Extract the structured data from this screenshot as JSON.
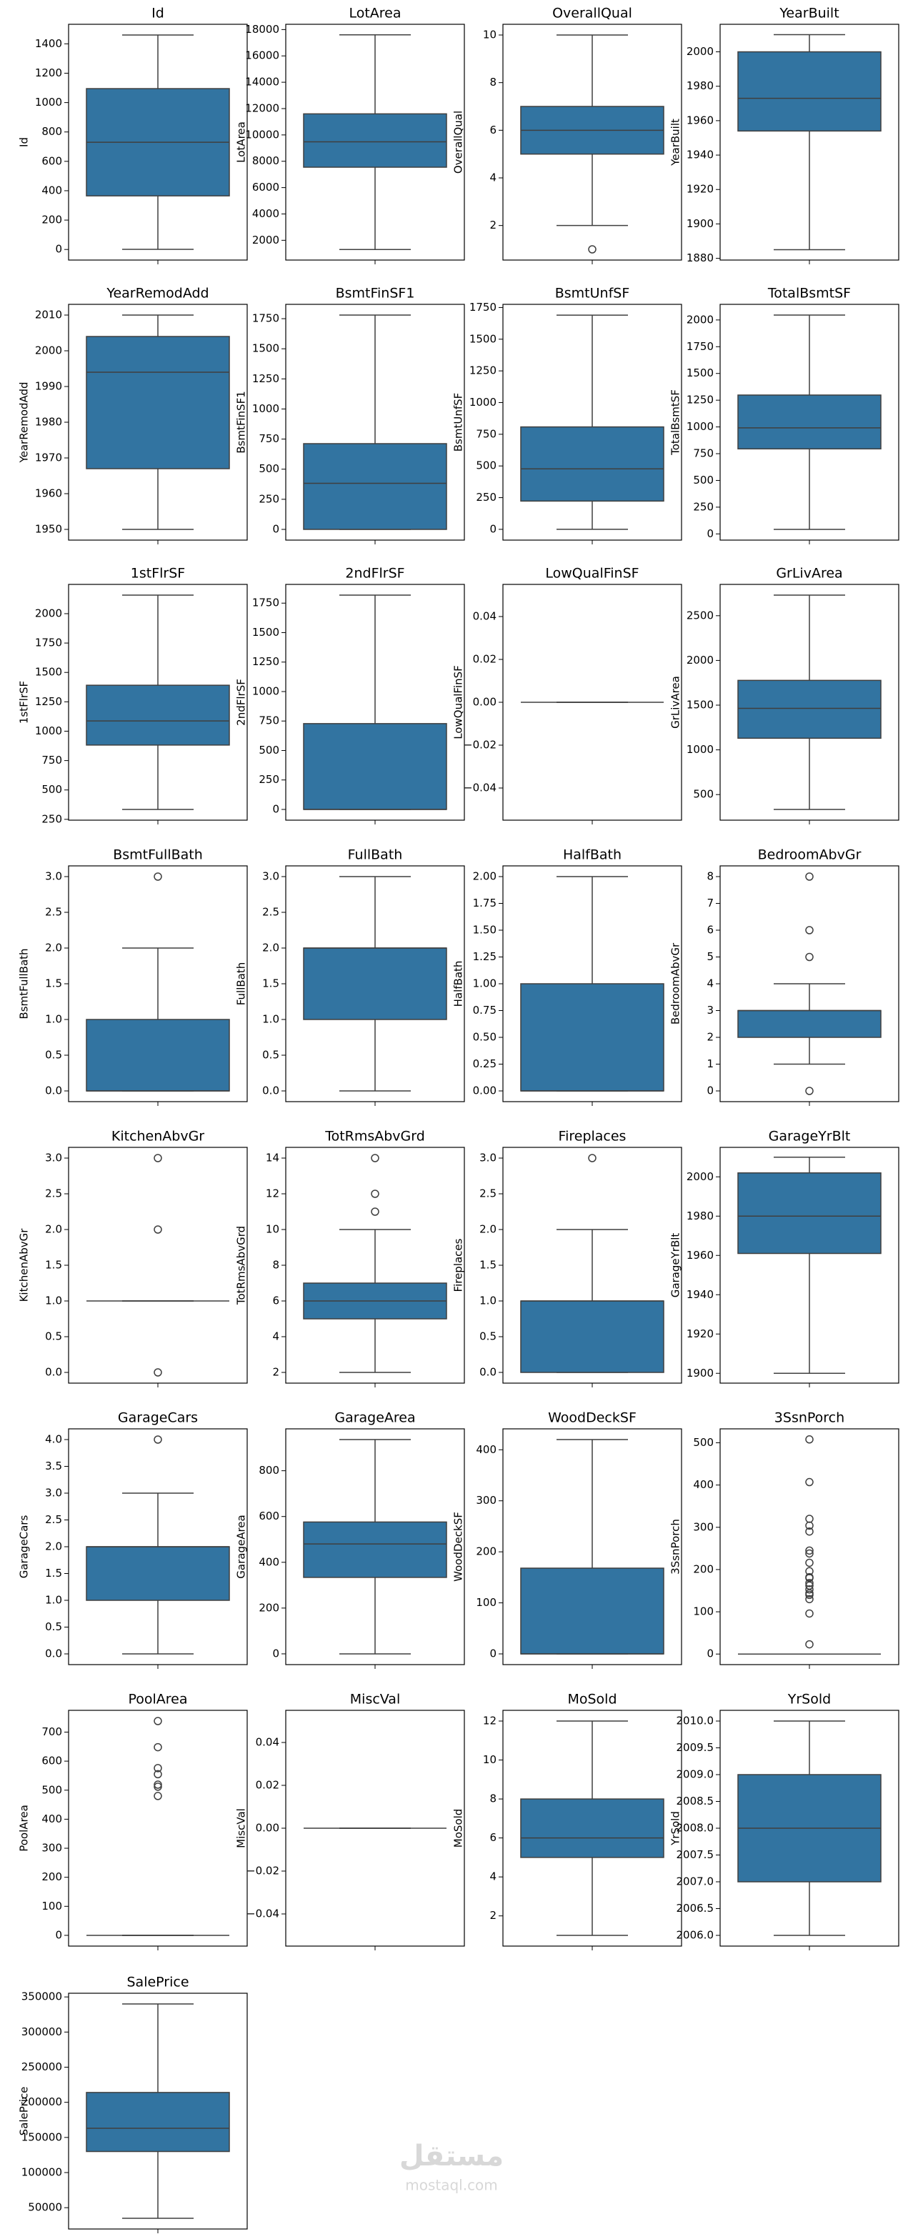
{
  "chart_data": [
    {
      "type": "box",
      "title": "Id",
      "ylabel": "Id",
      "ylim": [
        -72,
        1533
      ],
      "yticks": [
        0,
        200,
        400,
        600,
        800,
        1000,
        1200,
        1400
      ],
      "color": "#3274a1",
      "whislo": 1,
      "q1": 365,
      "med": 730,
      "q3": 1095,
      "whishi": 1460,
      "fliers": []
    },
    {
      "type": "box",
      "title": "LotArea",
      "ylabel": "LotArea",
      "ylim": [
        500,
        18400
      ],
      "yticks": [
        2000,
        4000,
        6000,
        8000,
        10000,
        12000,
        14000,
        16000,
        18000
      ],
      "color": "#3274a1",
      "whislo": 1300,
      "q1": 7550,
      "med": 9480,
      "q3": 11600,
      "whishi": 17600,
      "fliers": []
    },
    {
      "type": "box",
      "title": "OverallQual",
      "ylabel": "OverallQual",
      "ylim": [
        0.55,
        10.45
      ],
      "yticks": [
        2,
        4,
        6,
        8,
        10
      ],
      "color": "#3274a1",
      "whislo": 2,
      "q1": 5,
      "med": 6,
      "q3": 7,
      "whishi": 10,
      "fliers": [
        1
      ]
    },
    {
      "type": "box",
      "title": "YearBuilt",
      "ylabel": "YearBuilt",
      "ylim": [
        1879,
        2016
      ],
      "yticks": [
        1880,
        1900,
        1920,
        1940,
        1960,
        1980,
        2000
      ],
      "color": "#3274a1",
      "whislo": 1885,
      "q1": 1954,
      "med": 1973,
      "q3": 2000,
      "whishi": 2010,
      "fliers": []
    },
    {
      "type": "box",
      "title": "YearRemodAdd",
      "ylabel": "YearRemodAdd",
      "ylim": [
        1947,
        2013
      ],
      "yticks": [
        1950,
        1960,
        1970,
        1980,
        1990,
        2000,
        2010
      ],
      "color": "#3274a1",
      "whislo": 1950,
      "q1": 1967,
      "med": 1994,
      "q3": 2004,
      "whishi": 2010,
      "fliers": []
    },
    {
      "type": "box",
      "title": "BsmtFinSF1",
      "ylabel": "BsmtFinSF1",
      "ylim": [
        -89,
        1869
      ],
      "yticks": [
        0,
        250,
        500,
        750,
        1000,
        1250,
        1500,
        1750
      ],
      "color": "#3274a1",
      "whislo": 0,
      "q1": 0,
      "med": 383,
      "q3": 712,
      "whishi": 1780,
      "fliers": []
    },
    {
      "type": "box",
      "title": "BsmtUnfSF",
      "ylabel": "BsmtUnfSF",
      "ylim": [
        -85,
        1775
      ],
      "yticks": [
        0,
        250,
        500,
        750,
        1000,
        1250,
        1500,
        1750
      ],
      "color": "#3274a1",
      "whislo": 0,
      "q1": 223,
      "med": 477,
      "q3": 808,
      "whishi": 1690,
      "fliers": []
    },
    {
      "type": "box",
      "title": "TotalBsmtSF",
      "ylabel": "TotalBsmtSF",
      "ylim": [
        -58,
        2146
      ],
      "yticks": [
        0,
        250,
        500,
        750,
        1000,
        1250,
        1500,
        1750,
        2000
      ],
      "color": "#3274a1",
      "whislo": 42,
      "q1": 795,
      "med": 991,
      "q3": 1298,
      "whishi": 2046,
      "fliers": []
    },
    {
      "type": "box",
      "title": "1stFlrSF",
      "ylabel": "1stFlrSF",
      "ylim": [
        243,
        2249
      ],
      "yticks": [
        250,
        500,
        750,
        1000,
        1250,
        1500,
        1750,
        2000
      ],
      "color": "#3274a1",
      "whislo": 334,
      "q1": 882,
      "med": 1087,
      "q3": 1391,
      "whishi": 2158,
      "fliers": []
    },
    {
      "type": "box",
      "title": "2ndFlrSF",
      "ylabel": "2ndFlrSF",
      "ylim": [
        -91,
        1909
      ],
      "yticks": [
        0,
        250,
        500,
        750,
        1000,
        1250,
        1500,
        1750
      ],
      "color": "#3274a1",
      "whislo": 0,
      "q1": 0,
      "med": 0,
      "q3": 728,
      "whishi": 1818,
      "fliers": []
    },
    {
      "type": "box",
      "title": "LowQualFinSF",
      "ylabel": "LowQualFinSF",
      "ylim": [
        -0.055,
        0.055
      ],
      "yticks": [
        {
          "value": -0.04,
          "label": "−0.04"
        },
        {
          "value": -0.02,
          "label": "−0.02"
        },
        {
          "value": 0,
          "label": "0.00"
        },
        0.02,
        0.04
      ],
      "color": "#3274a1",
      "whislo": 0,
      "q1": 0,
      "med": 0,
      "q3": 0,
      "whishi": 0,
      "fliers": []
    },
    {
      "type": "box",
      "title": "GrLivArea",
      "ylabel": "GrLivArea",
      "ylim": [
        214,
        2850
      ],
      "yticks": [
        500,
        1000,
        1500,
        2000,
        2500
      ],
      "color": "#3274a1",
      "whislo": 334,
      "q1": 1130,
      "med": 1464,
      "q3": 1777,
      "whishi": 2730,
      "fliers": []
    },
    {
      "type": "box",
      "title": "BsmtFullBath",
      "ylabel": "BsmtFullBath",
      "ylim": [
        -0.15,
        3.15
      ],
      "yticks": [
        {
          "value": 0,
          "label": "0.0"
        },
        0.5,
        {
          "value": 1,
          "label": "1.0"
        },
        1.5,
        {
          "value": 2,
          "label": "2.0"
        },
        2.5,
        {
          "value": 3,
          "label": "3.0"
        }
      ],
      "color": "#3274a1",
      "whislo": 0,
      "q1": 0,
      "med": 0,
      "q3": 1,
      "whishi": 2,
      "fliers": [
        3
      ]
    },
    {
      "type": "box",
      "title": "FullBath",
      "ylabel": "FullBath",
      "ylim": [
        -0.15,
        3.15
      ],
      "yticks": [
        {
          "value": 0,
          "label": "0.0"
        },
        0.5,
        {
          "value": 1,
          "label": "1.0"
        },
        1.5,
        {
          "value": 2,
          "label": "2.0"
        },
        2.5,
        {
          "value": 3,
          "label": "3.0"
        }
      ],
      "color": "#3274a1",
      "whislo": 0,
      "q1": 1,
      "med": 2,
      "q3": 2,
      "whishi": 3,
      "fliers": []
    },
    {
      "type": "box",
      "title": "HalfBath",
      "ylabel": "HalfBath",
      "ylim": [
        -0.1,
        2.1
      ],
      "yticks": [
        {
          "value": 0,
          "label": "0.00"
        },
        0.25,
        {
          "value": 0.5,
          "label": "0.50"
        },
        0.75,
        {
          "value": 1,
          "label": "1.00"
        },
        1.25,
        {
          "value": 1.5,
          "label": "1.50"
        },
        1.75,
        {
          "value": 2,
          "label": "2.00"
        }
      ],
      "color": "#3274a1",
      "whislo": 0,
      "q1": 0,
      "med": 0,
      "q3": 1,
      "whishi": 2,
      "fliers": []
    },
    {
      "type": "box",
      "title": "BedroomAbvGr",
      "ylabel": "BedroomAbvGr",
      "ylim": [
        -0.4,
        8.4
      ],
      "yticks": [
        0,
        1,
        2,
        3,
        4,
        5,
        6,
        7,
        8
      ],
      "color": "#3274a1",
      "whislo": 1,
      "q1": 2,
      "med": 3,
      "q3": 3,
      "whishi": 4,
      "fliers": [
        0,
        5,
        6,
        8
      ]
    },
    {
      "type": "box",
      "title": "KitchenAbvGr",
      "ylabel": "KitchenAbvGr",
      "ylim": [
        -0.15,
        3.15
      ],
      "yticks": [
        {
          "value": 0,
          "label": "0.0"
        },
        0.5,
        {
          "value": 1,
          "label": "1.0"
        },
        1.5,
        {
          "value": 2,
          "label": "2.0"
        },
        2.5,
        {
          "value": 3,
          "label": "3.0"
        }
      ],
      "color": "#3274a1",
      "whislo": 1,
      "q1": 1,
      "med": 1,
      "q3": 1,
      "whishi": 1,
      "fliers": [
        0,
        2,
        3
      ]
    },
    {
      "type": "box",
      "title": "TotRmsAbvGrd",
      "ylabel": "TotRmsAbvGrd",
      "ylim": [
        1.4,
        14.6
      ],
      "yticks": [
        2,
        4,
        6,
        8,
        10,
        12,
        14
      ],
      "color": "#3274a1",
      "whislo": 2,
      "q1": 5,
      "med": 6,
      "q3": 7,
      "whishi": 10,
      "fliers": [
        11,
        12,
        14
      ]
    },
    {
      "type": "box",
      "title": "Fireplaces",
      "ylabel": "Fireplaces",
      "ylim": [
        -0.15,
        3.15
      ],
      "yticks": [
        {
          "value": 0,
          "label": "0.0"
        },
        0.5,
        {
          "value": 1,
          "label": "1.0"
        },
        1.5,
        {
          "value": 2,
          "label": "2.0"
        },
        2.5,
        {
          "value": 3,
          "label": "3.0"
        }
      ],
      "color": "#3274a1",
      "whislo": 0,
      "q1": 0,
      "med": 1,
      "q3": 1,
      "whishi": 2,
      "fliers": [
        3
      ]
    },
    {
      "type": "box",
      "title": "GarageYrBlt",
      "ylabel": "GarageYrBlt",
      "ylim": [
        1895,
        2015
      ],
      "yticks": [
        1900,
        1920,
        1940,
        1960,
        1980,
        2000
      ],
      "color": "#3274a1",
      "whislo": 1900,
      "q1": 1961,
      "med": 1980,
      "q3": 2002,
      "whishi": 2010,
      "fliers": []
    },
    {
      "type": "box",
      "title": "GarageCars",
      "ylabel": "GarageCars",
      "ylim": [
        -0.2,
        4.2
      ],
      "yticks": [
        {
          "value": 0,
          "label": "0.0"
        },
        0.5,
        {
          "value": 1,
          "label": "1.0"
        },
        1.5,
        {
          "value": 2,
          "label": "2.0"
        },
        2.5,
        {
          "value": 3,
          "label": "3.0"
        },
        3.5,
        {
          "value": 4,
          "label": "4.0"
        }
      ],
      "color": "#3274a1",
      "whislo": 0,
      "q1": 1,
      "med": 2,
      "q3": 2,
      "whishi": 3,
      "fliers": [
        4
      ]
    },
    {
      "type": "box",
      "title": "GarageArea",
      "ylabel": "GarageArea",
      "ylim": [
        -47,
        983
      ],
      "yticks": [
        0,
        200,
        400,
        600,
        800
      ],
      "color": "#3274a1",
      "whislo": 0,
      "q1": 334,
      "med": 480,
      "q3": 576,
      "whishi": 936,
      "fliers": []
    },
    {
      "type": "box",
      "title": "WoodDeckSF",
      "ylabel": "WoodDeckSF",
      "ylim": [
        -21,
        441
      ],
      "yticks": [
        0,
        100,
        200,
        300,
        400
      ],
      "color": "#3274a1",
      "whislo": 0,
      "q1": 0,
      "med": 0,
      "q3": 168,
      "whishi": 420,
      "fliers": []
    },
    {
      "type": "box",
      "title": "3SsnPorch",
      "ylabel": "3SsnPorch",
      "ylim": [
        -25,
        533
      ],
      "yticks": [
        0,
        100,
        200,
        300,
        400,
        500
      ],
      "color": "#3274a1",
      "whislo": 0,
      "q1": 0,
      "med": 0,
      "q3": 0,
      "whishi": 0,
      "fliers": [
        23,
        96,
        130,
        140,
        144,
        153,
        162,
        168,
        180,
        182,
        196,
        216,
        238,
        245,
        290,
        304,
        320,
        407,
        508
      ]
    },
    {
      "type": "box",
      "title": "PoolArea",
      "ylabel": "PoolArea",
      "ylim": [
        -37,
        775
      ],
      "yticks": [
        0,
        100,
        200,
        300,
        400,
        500,
        600,
        700
      ],
      "color": "#3274a1",
      "whislo": 0,
      "q1": 0,
      "med": 0,
      "q3": 0,
      "whishi": 0,
      "fliers": [
        480,
        512,
        519,
        555,
        576,
        648,
        738
      ]
    },
    {
      "type": "box",
      "title": "MiscVal",
      "ylabel": "MiscVal",
      "ylim": [
        -0.055,
        0.055
      ],
      "yticks": [
        {
          "value": -0.04,
          "label": "−0.04"
        },
        {
          "value": -0.02,
          "label": "−0.02"
        },
        {
          "value": 0,
          "label": "0.00"
        },
        0.02,
        0.04
      ],
      "color": "#3274a1",
      "whislo": 0,
      "q1": 0,
      "med": 0,
      "q3": 0,
      "whishi": 0,
      "fliers": []
    },
    {
      "type": "box",
      "title": "MoSold",
      "ylabel": "MoSold",
      "ylim": [
        0.45,
        12.55
      ],
      "yticks": [
        2,
        4,
        6,
        8,
        10,
        12
      ],
      "color": "#3274a1",
      "whislo": 1,
      "q1": 5,
      "med": 6,
      "q3": 8,
      "whishi": 12,
      "fliers": []
    },
    {
      "type": "box",
      "title": "YrSold",
      "ylabel": "YrSold",
      "ylim": [
        2005.8,
        2010.2
      ],
      "yticks": [
        {
          "value": 2006,
          "label": "2006.0"
        },
        2006.5,
        {
          "value": 2007,
          "label": "2007.0"
        },
        2007.5,
        {
          "value": 2008,
          "label": "2008.0"
        },
        2008.5,
        {
          "value": 2009,
          "label": "2009.0"
        },
        2009.5,
        {
          "value": 2010,
          "label": "2010.0"
        }
      ],
      "color": "#3274a1",
      "whislo": 2006,
      "q1": 2007,
      "med": 2008,
      "q3": 2009,
      "whishi": 2010,
      "fliers": []
    },
    {
      "type": "box",
      "title": "SalePrice",
      "ylabel": "SalePrice",
      "ylim": [
        19645,
        355255
      ],
      "yticks": [
        50000,
        100000,
        150000,
        200000,
        250000,
        300000,
        350000
      ],
      "color": "#3274a1",
      "whislo": 34900,
      "q1": 129975,
      "med": 163000,
      "q3": 214000,
      "whishi": 340000,
      "fliers": []
    }
  ],
  "watermark": {
    "arabic": "مستقل",
    "latin": "mostaql.com"
  }
}
